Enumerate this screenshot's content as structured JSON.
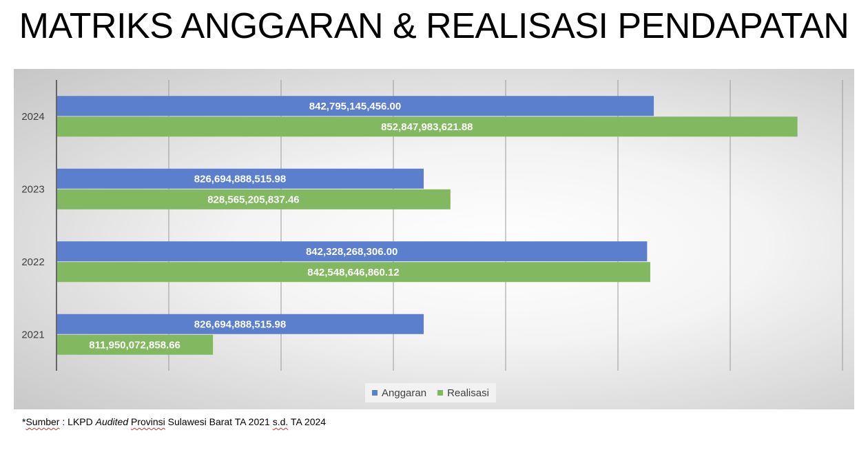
{
  "title": "MATRIKS ANGGARAN & REALISASI PENDAPATAN",
  "chart_data": {
    "type": "bar",
    "orientation": "horizontal",
    "title": "",
    "xlabel": "",
    "ylabel": "",
    "categories": [
      "2021",
      "2022",
      "2023",
      "2024"
    ],
    "xlim": [
      801000000000,
      856000000000
    ],
    "grid": true,
    "legend_position": "bottom",
    "series": [
      {
        "name": "Anggaran",
        "color": "#5b7fcd",
        "values": [
          826694888515.98,
          842328268306.0,
          826694888515.98,
          842795145456.0
        ],
        "labels": [
          "826,694,888,515.98",
          "842,328,268,306.00",
          "826,694,888,515.98",
          "842,795,145,456.00"
        ]
      },
      {
        "name": "Realisasi",
        "color": "#82b85f",
        "values": [
          811950072858.66,
          842548646860.12,
          828565205837.46,
          852847983621.88
        ],
        "labels": [
          "811,950,072,858.66",
          "842,548,646,860.12",
          "828,565,205,837.46",
          "852,847,983,621.88"
        ]
      }
    ]
  },
  "footnote": {
    "star": "*",
    "sumber": "Sumber",
    "colon": " : LKPD ",
    "audited": "Audited",
    "space": " ",
    "provinsi": "Provinsi",
    "rest1": " Sulawesi Barat TA 2021 ",
    "sd": "s.d.",
    "rest2": " TA 2024"
  }
}
